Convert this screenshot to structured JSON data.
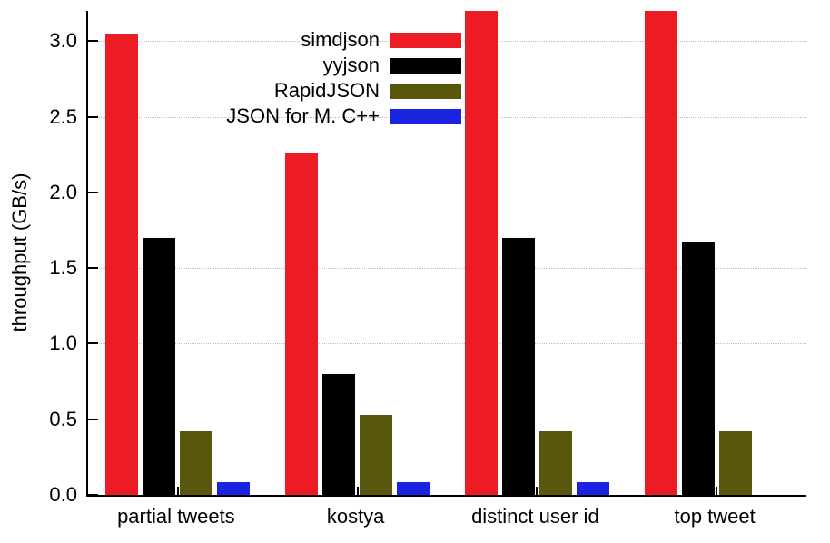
{
  "chart_data": {
    "type": "bar",
    "title": "",
    "xlabel": "",
    "ylabel": "throughput (GB/s)",
    "ylim": [
      0,
      3.2
    ],
    "yticks": [
      0.0,
      0.5,
      1.0,
      1.5,
      2.0,
      2.5,
      3.0
    ],
    "ytick_format_decimals": 1,
    "grid": "horizontal-dotted",
    "legend_position": "top-left-inside",
    "categories": [
      "partial tweets",
      "kostya",
      "distinct user id",
      "top tweet"
    ],
    "series": [
      {
        "name": "simdjson",
        "color": "#ed1c24",
        "values": [
          3.05,
          2.26,
          3.2,
          3.2
        ]
      },
      {
        "name": "yyjson",
        "color": "#000000",
        "values": [
          1.7,
          0.8,
          1.7,
          1.67
        ]
      },
      {
        "name": "RapidJSON",
        "color": "#59560e",
        "values": [
          0.42,
          0.53,
          0.42,
          0.42
        ]
      },
      {
        "name": "JSON for M. C++",
        "color": "#1a23e0",
        "values": [
          0.085,
          0.085,
          0.085,
          0
        ]
      }
    ]
  }
}
